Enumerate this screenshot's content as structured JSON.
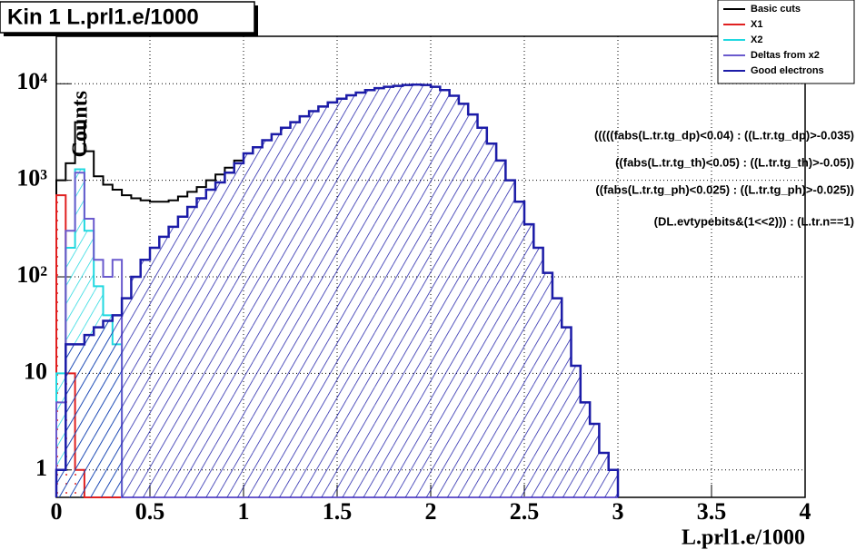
{
  "chart_data": {
    "type": "histogram",
    "title": "Kin 1 L.prl1.e/1000",
    "y_label": "Counts",
    "x_label": "L.prl1.e/1000",
    "log": true,
    "grid": true,
    "legend": "top-right",
    "xlim": [
      0,
      4
    ],
    "xticks": [
      0,
      0.5,
      1,
      1.5,
      2,
      2.5,
      3,
      3.5,
      4
    ],
    "ylim": [
      0.52,
      31000
    ],
    "yticks": [
      1,
      10,
      {
        "value": 100,
        "label": "10²"
      },
      {
        "value": 1000,
        "label": "10³"
      },
      {
        "value": 10000,
        "label": "10⁴"
      }
    ],
    "bins": [
      0,
      0.05,
      0.1,
      0.15,
      0.2,
      0.25,
      0.3,
      0.35,
      0.4,
      0.45,
      0.5,
      0.55,
      0.6,
      0.65,
      0.7,
      0.75,
      0.8,
      0.85,
      0.9,
      0.95,
      1,
      1.05,
      1.1,
      1.15,
      1.2,
      1.25,
      1.3,
      1.35,
      1.4,
      1.45,
      1.5,
      1.55,
      1.6,
      1.65,
      1.7,
      1.75,
      1.8,
      1.85,
      1.9,
      1.95,
      2,
      2.05,
      2.1,
      2.15,
      2.2,
      2.25,
      2.3,
      2.35,
      2.4,
      2.45,
      2.5,
      2.55,
      2.6,
      2.65,
      2.7,
      2.75,
      2.8,
      2.85,
      2.9,
      2.95,
      3
    ],
    "series": [
      {
        "name": "Basic cuts",
        "color": "#000000",
        "hatch": false,
        "values": [
          1000,
          1500,
          4000,
          2000,
          1100,
          900,
          800,
          700,
          650,
          620,
          600,
          600,
          620,
          680,
          760,
          850,
          1000,
          1150,
          1350,
          1600,
          1900,
          2200,
          2600,
          3000,
          3500,
          4000,
          4600,
          5200,
          5800,
          6400,
          7000,
          7600,
          8100,
          8600,
          9000,
          9300,
          9500,
          9700,
          9800,
          9700,
          9300,
          8600,
          7500,
          6200,
          4800,
          3500,
          2400,
          1600,
          1000,
          600,
          350,
          200,
          110,
          60,
          30,
          12,
          5,
          3,
          1.5,
          1
        ]
      },
      {
        "name": "X1",
        "color": "#e02020",
        "hatch": true,
        "values": [
          700,
          10,
          1,
          0,
          0,
          0,
          0,
          0,
          0,
          0,
          0,
          0,
          0,
          0,
          0,
          0,
          0,
          0,
          0,
          0,
          0,
          0,
          0,
          0,
          0,
          0,
          0,
          0,
          0,
          0,
          0,
          0,
          0,
          0,
          0,
          0,
          0,
          0,
          0,
          0,
          0,
          0,
          0,
          0,
          0,
          0,
          0,
          0,
          0,
          0,
          0,
          0,
          0,
          0,
          0,
          0,
          0,
          0,
          0,
          0
        ]
      },
      {
        "name": "X2",
        "color": "#20d8e0",
        "hatch": true,
        "values": [
          10,
          200,
          1300,
          300,
          80,
          40,
          20,
          0,
          0,
          0,
          0,
          0,
          0,
          0,
          0,
          0,
          0,
          0,
          0,
          0,
          0,
          0,
          0,
          0,
          0,
          0,
          0,
          0,
          0,
          0,
          0,
          0,
          0,
          0,
          0,
          0,
          0,
          0,
          0,
          0,
          0,
          0,
          0,
          0,
          0,
          0,
          0,
          0,
          0,
          0,
          0,
          0,
          0,
          0,
          0,
          0,
          0,
          0,
          0,
          0
        ]
      },
      {
        "name": "Deltas from x2",
        "color": "#6a5acd",
        "hatch": false,
        "values": [
          5,
          300,
          1200,
          400,
          150,
          100,
          150,
          0,
          0,
          0,
          0,
          0,
          0,
          0,
          0,
          0,
          0,
          0,
          0,
          0,
          0,
          0,
          0,
          0,
          0,
          0,
          0,
          0,
          0,
          0,
          0,
          0,
          0,
          0,
          0,
          0,
          0,
          0,
          0,
          0,
          0,
          0,
          0,
          0,
          0,
          0,
          0,
          0,
          0,
          0,
          0,
          0,
          0,
          0,
          0,
          0,
          0,
          0,
          0,
          0
        ]
      },
      {
        "name": "Good electrons",
        "color": "#1c1ca8",
        "hatch": true,
        "values": [
          1,
          20,
          20,
          25,
          30,
          35,
          40,
          60,
          100,
          150,
          200,
          260,
          330,
          420,
          530,
          650,
          800,
          950,
          1200,
          1500,
          1900,
          2200,
          2600,
          3000,
          3500,
          4000,
          4600,
          5200,
          5800,
          6400,
          7000,
          7600,
          8100,
          8600,
          9000,
          9300,
          9500,
          9700,
          9800,
          9700,
          9300,
          8600,
          7500,
          6200,
          4800,
          3500,
          2400,
          1600,
          1000,
          600,
          350,
          200,
          110,
          60,
          30,
          12,
          5,
          3,
          1.5,
          1
        ]
      }
    ],
    "annotations": [
      "(((((fabs(L.tr.tg_dp)<0.04)   : ((L.tr.tg_dp)>-0.035)",
      "((fabs(L.tr.tg_th)<0.05)   : ((L.tr.tg_th)>-0.05))",
      "((fabs(L.tr.tg_ph)<0.025)   : ((L.tr.tg_ph)>-0.025))",
      "(DL.evtypebits&(1<<2)))   : (L.tr.n==1)"
    ]
  }
}
